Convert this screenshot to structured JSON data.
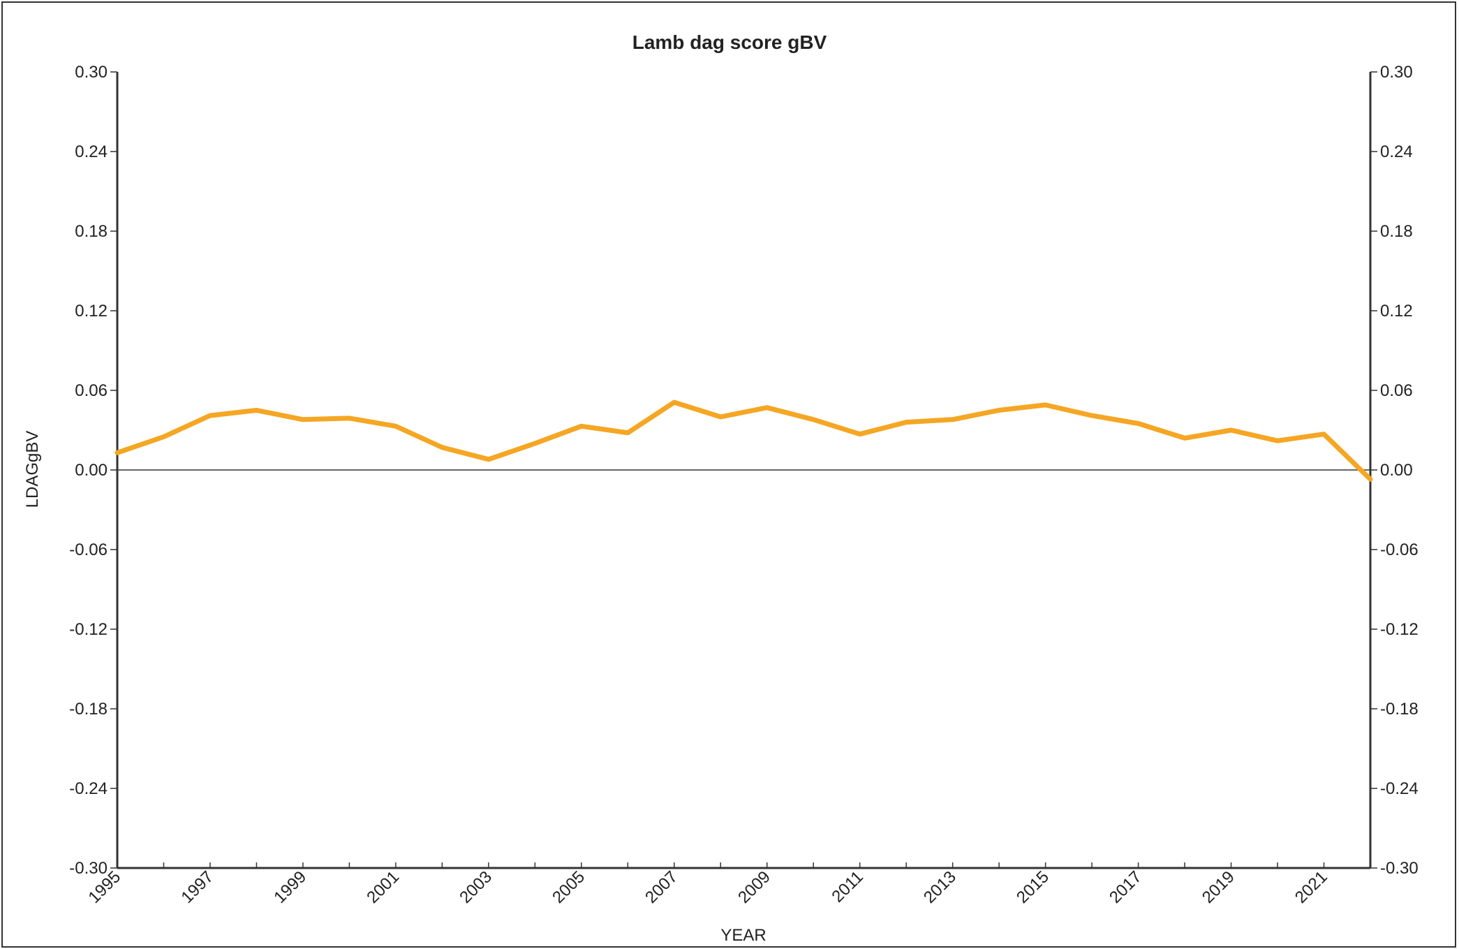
{
  "chart_data": {
    "type": "line",
    "title": "Lamb dag score gBV",
    "xlabel": "YEAR",
    "ylabel": "LDAGgBV",
    "xlim": [
      1995,
      2022
    ],
    "ylim": [
      -0.3,
      0.3
    ],
    "y_ticks": [
      "0.30",
      "0.24",
      "0.18",
      "0.12",
      "0.06",
      "0.00",
      "-0.06",
      "-0.12",
      "-0.18",
      "-0.24",
      "-0.30"
    ],
    "x_tick_labels": [
      "1995",
      "1997",
      "1999",
      "2001",
      "2003",
      "2005",
      "2007",
      "2009",
      "2011",
      "2013",
      "2015",
      "2017",
      "2019",
      "2021"
    ],
    "dual_y_axis": true,
    "zero_line": true,
    "grid": false,
    "line_color": "#F5A623",
    "series": [
      {
        "x": [
          1995,
          1996,
          1997,
          1998,
          1999,
          2000,
          2001,
          2002,
          2003,
          2004,
          2005,
          2006,
          2007,
          2008,
          2009,
          2010,
          2011,
          2012,
          2013,
          2014,
          2015,
          2016,
          2017,
          2018,
          2019,
          2020,
          2021,
          2022
        ],
        "values": [
          0.013,
          0.025,
          0.041,
          0.045,
          0.038,
          0.039,
          0.033,
          0.017,
          0.008,
          0.02,
          0.033,
          0.028,
          0.051,
          0.04,
          0.047,
          0.038,
          0.027,
          0.036,
          0.038,
          0.045,
          0.049,
          0.041,
          0.035,
          0.024,
          0.03,
          0.022,
          0.027,
          -0.007
        ]
      }
    ]
  }
}
